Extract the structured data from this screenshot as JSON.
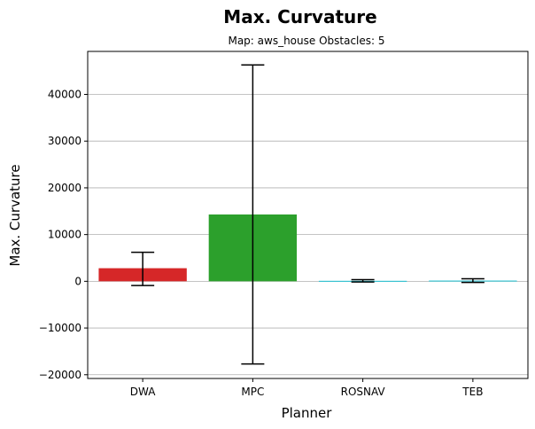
{
  "chart_data": {
    "type": "bar",
    "title": "Max. Curvature",
    "subtitle": "Map: aws_house Obstacles: 5",
    "xlabel": "Planner",
    "ylabel": "Max. Curvature",
    "categories": [
      "DWA",
      "MPC",
      "ROSNAV",
      "TEB"
    ],
    "values": [
      2800,
      14300,
      100,
      150
    ],
    "error_low": [
      -900,
      -17700,
      -150,
      -250
    ],
    "error_high": [
      6200,
      46300,
      350,
      550
    ],
    "colors": [
      "#d62728",
      "#2ca02c",
      "#17becf",
      "#17becf"
    ],
    "ylim": [
      -20800,
      49200
    ],
    "yticks": [
      -20000,
      -10000,
      0,
      10000,
      20000,
      30000,
      40000
    ],
    "ytick_labels": [
      "−20000",
      "−10000",
      "0",
      "10000",
      "20000",
      "30000",
      "40000"
    ],
    "grid": "y",
    "legend": "none"
  }
}
